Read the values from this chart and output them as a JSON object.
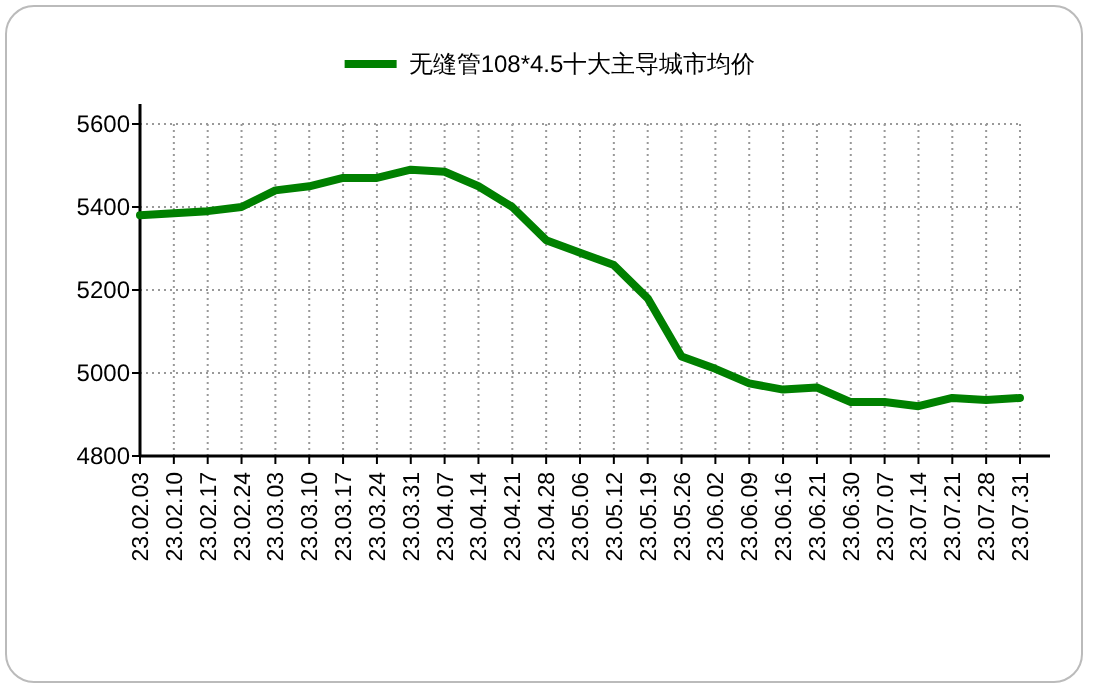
{
  "chart_data": {
    "type": "line",
    "categories": [
      "23.02.03",
      "23.02.10",
      "23.02.17",
      "23.02.24",
      "23.03.03",
      "23.03.10",
      "23.03.17",
      "23.03.24",
      "23.03.31",
      "23.04.07",
      "23.04.14",
      "23.04.21",
      "23.04.28",
      "23.05.06",
      "23.05.12",
      "23.05.19",
      "23.05.26",
      "23.06.02",
      "23.06.09",
      "23.06.16",
      "23.06.21",
      "23.06.30",
      "23.07.07",
      "23.07.14",
      "23.07.21",
      "23.07.28",
      "23.07.31"
    ],
    "series": [
      {
        "name": "无缝管108*4.5十大主导城市均价",
        "color": "#008000",
        "values": [
          5380,
          5385,
          5390,
          5400,
          5440,
          5450,
          5470,
          5470,
          5490,
          5485,
          5450,
          5400,
          5320,
          5290,
          5260,
          5180,
          5040,
          5010,
          4975,
          4960,
          4965,
          4930,
          4930,
          4920,
          4940,
          4935,
          4940
        ]
      }
    ],
    "ylim": [
      4800,
      5600
    ],
    "yticks": [
      4800,
      5000,
      5200,
      5400,
      5600
    ],
    "grid": true,
    "legend": "top",
    "marker": "none",
    "line_style": "solid"
  }
}
